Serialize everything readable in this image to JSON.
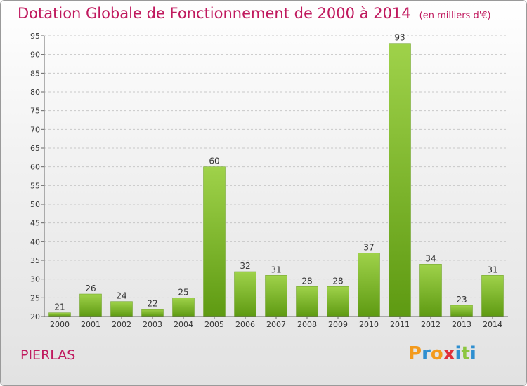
{
  "chart_data": {
    "type": "bar",
    "title": "Dotation Globale de Fonctionnement de 2000 à 2014",
    "unit_label": "(en milliers d'€)",
    "categories": [
      "2000",
      "2001",
      "2002",
      "2003",
      "2004",
      "2005",
      "2006",
      "2007",
      "2008",
      "2009",
      "2010",
      "2011",
      "2012",
      "2013",
      "2014"
    ],
    "values": [
      21,
      26,
      24,
      22,
      25,
      60,
      32,
      31,
      28,
      28,
      37,
      93,
      34,
      23,
      31
    ],
    "ylim": [
      20,
      95
    ],
    "yticks": [
      20,
      25,
      30,
      35,
      40,
      45,
      50,
      55,
      60,
      65,
      70,
      75,
      80,
      85,
      90,
      95
    ],
    "grid": true,
    "bar_color_top": "#9fd24a",
    "bar_color_bottom": "#5e9a12"
  },
  "commune": "PIERLAS",
  "logo": {
    "letters": [
      "P",
      "r",
      "o",
      "x",
      "i",
      "t",
      "i"
    ],
    "colors": [
      "#f39a1c",
      "#2f8fd0",
      "#f39a1c",
      "#e0303a",
      "#2f8fd0",
      "#8cc63f",
      "#2f8fd0"
    ]
  }
}
